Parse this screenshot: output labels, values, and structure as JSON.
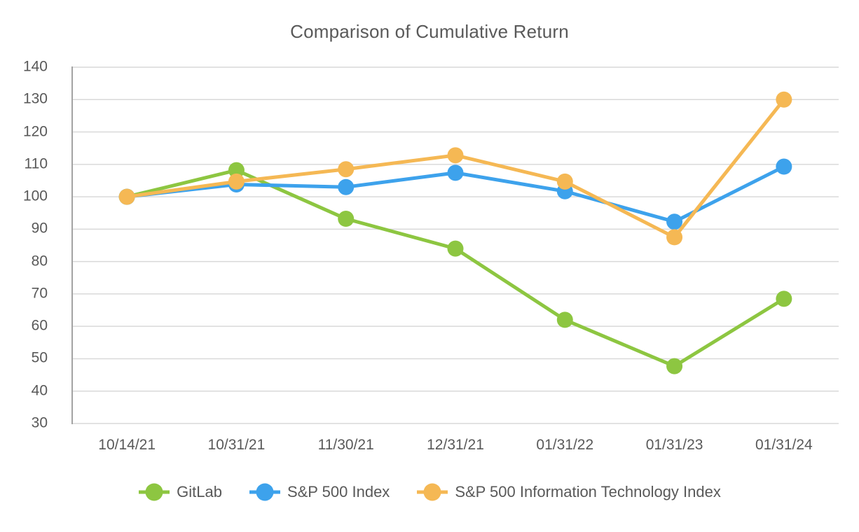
{
  "chart_data": {
    "type": "line",
    "title": "Comparison of Cumulative Return",
    "categories": [
      "10/14/21",
      "10/31/21",
      "11/30/21",
      "12/31/21",
      "01/31/22",
      "01/31/23",
      "01/31/24"
    ],
    "series": [
      {
        "name": "GitLab",
        "color": "#8DC641",
        "values": [
          100,
          108.2,
          93.2,
          84.0,
          62.0,
          47.7,
          68.5
        ]
      },
      {
        "name": "S&P 500 Index",
        "color": "#3DA2EC",
        "values": [
          100,
          103.8,
          103.0,
          107.4,
          101.7,
          92.3,
          109.3
        ]
      },
      {
        "name": "S&P 500 Information Technology Index",
        "color": "#F5B854",
        "values": [
          100,
          104.7,
          108.5,
          112.8,
          104.7,
          87.5,
          130.0
        ]
      }
    ],
    "ylim": [
      30,
      140
    ],
    "yticks": [
      30,
      40,
      50,
      60,
      70,
      80,
      90,
      100,
      110,
      120,
      130,
      140
    ],
    "xlabel": "",
    "ylabel": "",
    "grid": "horizontal",
    "legend_position": "bottom",
    "colors": {
      "text": "#595959",
      "grid_line": "#D9D9D9",
      "axis_line": "#A3A3A3",
      "background": "#FFFFFF"
    }
  }
}
